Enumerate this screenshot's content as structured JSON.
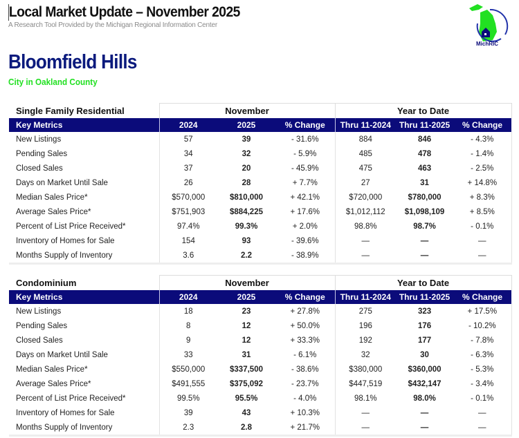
{
  "header": {
    "title": "Local Market Update – November 2025",
    "subtitle": "A Research Tool Provided by the Michigan Regional Information Center",
    "logo_text": "MichRIC",
    "logo_ring_text": "Michigan Regional Information Center"
  },
  "location": {
    "name": "Bloomfield Hills",
    "descriptor": "City in Oakland County"
  },
  "colors": {
    "navy": "#0b0b7a",
    "green": "#22e022"
  },
  "tables": [
    {
      "title": "Single Family Residential",
      "group_period": "November",
      "group_ytd": "Year to Date",
      "columns": [
        "Key Metrics",
        "2024",
        "2025",
        "% Change",
        "Thru 11-2024",
        "Thru 11-2025",
        "% Change"
      ],
      "rows": [
        [
          "New Listings",
          "57",
          "39",
          "- 31.6%",
          "884",
          "846",
          "- 4.3%"
        ],
        [
          "Pending Sales",
          "34",
          "32",
          "- 5.9%",
          "485",
          "478",
          "- 1.4%"
        ],
        [
          "Closed Sales",
          "37",
          "20",
          "- 45.9%",
          "475",
          "463",
          "- 2.5%"
        ],
        [
          "Days on Market Until Sale",
          "26",
          "28",
          "+ 7.7%",
          "27",
          "31",
          "+ 14.8%"
        ],
        [
          "Median Sales Price*",
          "$570,000",
          "$810,000",
          "+ 42.1%",
          "$720,000",
          "$780,000",
          "+ 8.3%"
        ],
        [
          "Average Sales Price*",
          "$751,903",
          "$884,225",
          "+ 17.6%",
          "$1,012,112",
          "$1,098,109",
          "+ 8.5%"
        ],
        [
          "Percent of List Price Received*",
          "97.4%",
          "99.3%",
          "+ 2.0%",
          "98.8%",
          "98.7%",
          "- 0.1%"
        ],
        [
          "Inventory of Homes for Sale",
          "154",
          "93",
          "- 39.6%",
          "—",
          "—",
          "—"
        ],
        [
          "Months Supply of Inventory",
          "3.6",
          "2.2",
          "- 38.9%",
          "—",
          "—",
          "—"
        ]
      ]
    },
    {
      "title": "Condominium",
      "group_period": "November",
      "group_ytd": "Year to Date",
      "columns": [
        "Key Metrics",
        "2024",
        "2025",
        "% Change",
        "Thru 11-2024",
        "Thru 11-2025",
        "% Change"
      ],
      "rows": [
        [
          "New Listings",
          "18",
          "23",
          "+ 27.8%",
          "275",
          "323",
          "+ 17.5%"
        ],
        [
          "Pending Sales",
          "8",
          "12",
          "+ 50.0%",
          "196",
          "176",
          "- 10.2%"
        ],
        [
          "Closed Sales",
          "9",
          "12",
          "+ 33.3%",
          "192",
          "177",
          "- 7.8%"
        ],
        [
          "Days on Market Until Sale",
          "33",
          "31",
          "- 6.1%",
          "32",
          "30",
          "- 6.3%"
        ],
        [
          "Median Sales Price*",
          "$550,000",
          "$337,500",
          "- 38.6%",
          "$380,000",
          "$360,000",
          "- 5.3%"
        ],
        [
          "Average Sales Price*",
          "$491,555",
          "$375,092",
          "- 23.7%",
          "$447,519",
          "$432,147",
          "- 3.4%"
        ],
        [
          "Percent of List Price Received*",
          "99.5%",
          "95.5%",
          "- 4.0%",
          "98.1%",
          "98.0%",
          "- 0.1%"
        ],
        [
          "Inventory of Homes for Sale",
          "39",
          "43",
          "+ 10.3%",
          "—",
          "—",
          "—"
        ],
        [
          "Months Supply of Inventory",
          "2.3",
          "2.8",
          "+ 21.7%",
          "—",
          "—",
          "—"
        ]
      ]
    }
  ]
}
